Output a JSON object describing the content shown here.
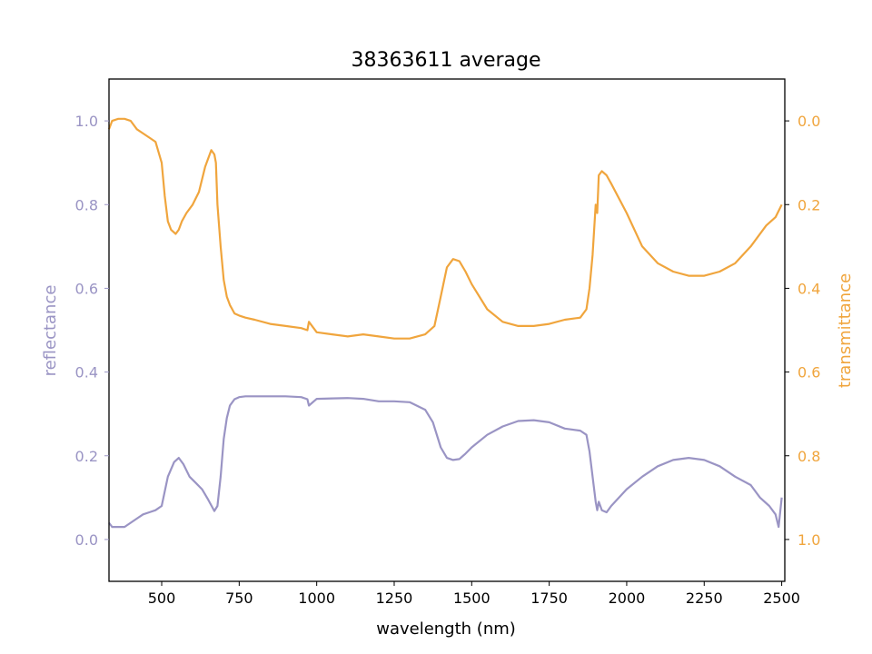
{
  "chart_data": {
    "type": "line",
    "title": "38363611 average",
    "xlabel": "wavelength (nm)",
    "ylabel_left": "reflectance",
    "ylabel_right": "transmittance",
    "xlim": [
      330,
      2510
    ],
    "ylim_left": [
      -0.1,
      1.1
    ],
    "ylim_right": [
      1.1,
      -0.1
    ],
    "right_axis_inverted": true,
    "grid": false,
    "x_ticks": [
      500,
      750,
      1000,
      1250,
      1500,
      1750,
      2000,
      2250,
      2500
    ],
    "y_ticks_left": [
      0.0,
      0.2,
      0.4,
      0.6,
      0.8,
      1.0
    ],
    "y_ticks_right": [
      0.0,
      0.2,
      0.4,
      0.6,
      0.8,
      1.0
    ],
    "colors": {
      "reflectance": "#9a94c4",
      "transmittance": "#f0a53d",
      "axes": "#000000"
    },
    "series": [
      {
        "axis": "left",
        "color": "#9a94c4",
        "x": [
          330,
          340,
          360,
          380,
          400,
          420,
          440,
          460,
          480,
          500,
          520,
          540,
          555,
          570,
          590,
          610,
          630,
          650,
          670,
          680,
          690,
          700,
          710,
          720,
          735,
          750,
          770,
          800,
          850,
          900,
          950,
          970,
          975,
          1000,
          1050,
          1100,
          1150,
          1200,
          1250,
          1300,
          1350,
          1375,
          1400,
          1420,
          1440,
          1460,
          1480,
          1500,
          1550,
          1600,
          1650,
          1700,
          1750,
          1800,
          1850,
          1870,
          1880,
          1890,
          1900,
          1905,
          1910,
          1920,
          1935,
          1950,
          2000,
          2050,
          2100,
          2150,
          2200,
          2250,
          2300,
          2350,
          2400,
          2430,
          2460,
          2480,
          2490,
          2500
        ],
        "values": [
          0.04,
          0.03,
          0.03,
          0.03,
          0.04,
          0.05,
          0.06,
          0.065,
          0.07,
          0.08,
          0.15,
          0.185,
          0.195,
          0.18,
          0.15,
          0.135,
          0.12,
          0.095,
          0.068,
          0.08,
          0.15,
          0.24,
          0.29,
          0.32,
          0.335,
          0.34,
          0.342,
          0.342,
          0.342,
          0.342,
          0.34,
          0.335,
          0.32,
          0.336,
          0.337,
          0.338,
          0.336,
          0.33,
          0.33,
          0.328,
          0.31,
          0.28,
          0.22,
          0.195,
          0.19,
          0.192,
          0.205,
          0.22,
          0.25,
          0.27,
          0.283,
          0.285,
          0.28,
          0.265,
          0.26,
          0.25,
          0.21,
          0.15,
          0.09,
          0.07,
          0.09,
          0.07,
          0.065,
          0.08,
          0.12,
          0.15,
          0.175,
          0.19,
          0.195,
          0.19,
          0.175,
          0.15,
          0.13,
          0.1,
          0.08,
          0.06,
          0.03,
          0.1
        ]
      },
      {
        "axis": "right",
        "color": "#f0a53d",
        "x": [
          330,
          340,
          360,
          380,
          400,
          420,
          440,
          460,
          480,
          500,
          510,
          520,
          530,
          545,
          555,
          565,
          580,
          600,
          620,
          640,
          660,
          670,
          675,
          680,
          690,
          700,
          710,
          720,
          735,
          750,
          770,
          800,
          850,
          900,
          950,
          970,
          975,
          1000,
          1050,
          1100,
          1150,
          1200,
          1250,
          1300,
          1350,
          1380,
          1400,
          1420,
          1440,
          1460,
          1480,
          1500,
          1550,
          1600,
          1650,
          1700,
          1750,
          1800,
          1850,
          1870,
          1880,
          1890,
          1900,
          1905,
          1910,
          1920,
          1935,
          1950,
          2000,
          2050,
          2100,
          2150,
          2200,
          2250,
          2300,
          2350,
          2400,
          2450,
          2480,
          2500
        ],
        "values": [
          0.02,
          0.0,
          -0.005,
          -0.005,
          0.0,
          0.02,
          0.03,
          0.04,
          0.05,
          0.1,
          0.18,
          0.24,
          0.26,
          0.27,
          0.26,
          0.24,
          0.22,
          0.2,
          0.17,
          0.11,
          0.07,
          0.08,
          0.1,
          0.2,
          0.3,
          0.38,
          0.42,
          0.44,
          0.46,
          0.465,
          0.47,
          0.475,
          0.485,
          0.49,
          0.495,
          0.5,
          0.48,
          0.505,
          0.51,
          0.515,
          0.51,
          0.515,
          0.52,
          0.52,
          0.51,
          0.49,
          0.42,
          0.35,
          0.33,
          0.335,
          0.36,
          0.39,
          0.45,
          0.48,
          0.49,
          0.49,
          0.485,
          0.475,
          0.47,
          0.45,
          0.4,
          0.32,
          0.2,
          0.22,
          0.13,
          0.12,
          0.13,
          0.15,
          0.22,
          0.3,
          0.34,
          0.36,
          0.37,
          0.37,
          0.36,
          0.34,
          0.3,
          0.25,
          0.23,
          0.2
        ]
      }
    ]
  }
}
